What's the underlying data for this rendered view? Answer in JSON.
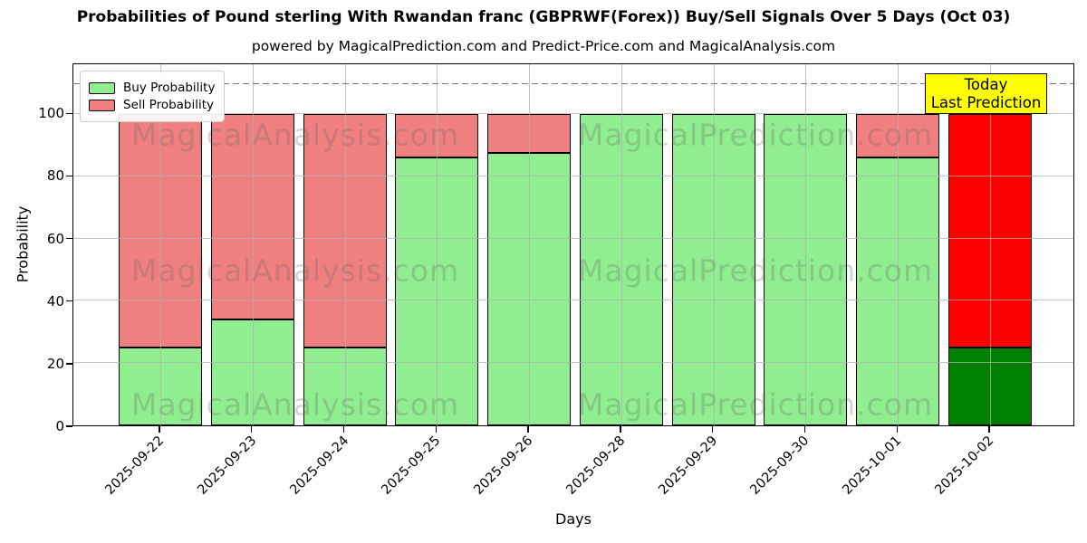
{
  "title": "Probabilities of Pound sterling With Rwandan franc (GBPRWF(Forex)) Buy/Sell Signals Over 5 Days (Oct 03)",
  "subtitle": "powered by MagicalPrediction.com and Predict-Price.com and MagicalAnalysis.com",
  "legend": {
    "items": [
      {
        "label": "Buy Probability",
        "color": "#90ee90"
      },
      {
        "label": "Sell Probability",
        "color": "#f08080"
      }
    ]
  },
  "annotation": {
    "line1": "Today",
    "line2": "Last Prediction",
    "bg_color": "#ffff00"
  },
  "watermarks": {
    "left_text": "MagicalAnalysis.com",
    "right_text": "MagicalPrediction.com"
  },
  "chart_data": {
    "type": "bar",
    "stacked": true,
    "title": "Probabilities of Pound sterling With Rwandan franc (GBPRWF(Forex)) Buy/Sell Signals Over 5 Days (Oct 03)",
    "xlabel": "Days",
    "ylabel": "Probability",
    "categories": [
      "2025-09-22",
      "2025-09-23",
      "2025-09-24",
      "2025-09-25",
      "2025-09-26",
      "2025-09-28",
      "2025-09-29",
      "2025-09-30",
      "2025-10-01",
      "2025-10-02"
    ],
    "series": [
      {
        "name": "Buy Probability",
        "color": "#90ee90",
        "values": [
          25,
          34,
          25,
          86,
          87.5,
          100,
          100,
          100,
          86,
          25
        ]
      },
      {
        "name": "Sell Probability",
        "color": "#f08080",
        "values": [
          75,
          66,
          75,
          14,
          12.5,
          0,
          0,
          0,
          14,
          75
        ]
      }
    ],
    "highlight_index": 9,
    "highlight_colors": {
      "buy": "#008000",
      "sell": "#ff0000"
    },
    "ylim": [
      0,
      116
    ],
    "yticks": [
      0,
      20,
      40,
      60,
      80,
      100
    ],
    "dashed_line_y": 110,
    "grid": true,
    "legend_position": "upper left",
    "bar_edge_color": "#000000"
  }
}
